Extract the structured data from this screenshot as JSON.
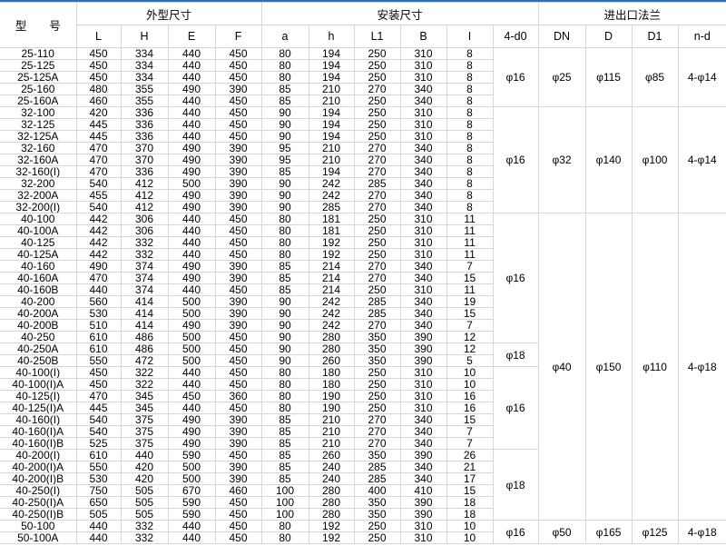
{
  "header": {
    "model": "型　　号",
    "group_outline": "外型尺寸",
    "group_install": "安装尺寸",
    "group_flange": "进出口法兰",
    "columns": [
      "L",
      "H",
      "E",
      "F",
      "a",
      "h",
      "L1",
      "B",
      "I",
      "4-d0",
      "DN",
      "D",
      "D1",
      "n-d"
    ]
  },
  "colors": {
    "top_bar": "#2f6eaf",
    "border": "#d6d6d6",
    "text": "#000000"
  },
  "rows": [
    [
      "25-110",
      "450",
      "334",
      "440",
      "450",
      "80",
      "194",
      "250",
      "310",
      "8"
    ],
    [
      "25-125",
      "450",
      "334",
      "440",
      "450",
      "80",
      "194",
      "250",
      "310",
      "8"
    ],
    [
      "25-125A",
      "450",
      "334",
      "440",
      "450",
      "80",
      "194",
      "250",
      "310",
      "8"
    ],
    [
      "25-160",
      "480",
      "355",
      "490",
      "390",
      "85",
      "210",
      "270",
      "340",
      "8"
    ],
    [
      "25-160A",
      "460",
      "355",
      "440",
      "450",
      "85",
      "210",
      "250",
      "340",
      "8"
    ],
    [
      "32-100",
      "420",
      "336",
      "440",
      "450",
      "90",
      "194",
      "250",
      "310",
      "8"
    ],
    [
      "32-125",
      "445",
      "336",
      "440",
      "450",
      "90",
      "194",
      "250",
      "310",
      "8"
    ],
    [
      "32-125A",
      "445",
      "336",
      "440",
      "450",
      "90",
      "194",
      "250",
      "310",
      "8"
    ],
    [
      "32-160",
      "470",
      "370",
      "490",
      "390",
      "95",
      "210",
      "270",
      "340",
      "8"
    ],
    [
      "32-160A",
      "470",
      "370",
      "490",
      "390",
      "95",
      "210",
      "270",
      "340",
      "8"
    ],
    [
      "32-160(I)",
      "470",
      "336",
      "490",
      "390",
      "85",
      "194",
      "270",
      "340",
      "8"
    ],
    [
      "32-200",
      "540",
      "412",
      "500",
      "390",
      "90",
      "242",
      "285",
      "340",
      "8"
    ],
    [
      "32-200A",
      "455",
      "412",
      "490",
      "390",
      "90",
      "242",
      "270",
      "340",
      "8"
    ],
    [
      "32-200(I)",
      "540",
      "412",
      "490",
      "390",
      "90",
      "285",
      "270",
      "340",
      "8"
    ],
    [
      "40-100",
      "442",
      "306",
      "440",
      "450",
      "80",
      "181",
      "250",
      "310",
      "11"
    ],
    [
      "40-100A",
      "442",
      "306",
      "440",
      "450",
      "80",
      "181",
      "250",
      "310",
      "11"
    ],
    [
      "40-125",
      "442",
      "332",
      "440",
      "450",
      "80",
      "192",
      "250",
      "310",
      "11"
    ],
    [
      "40-125A",
      "442",
      "332",
      "440",
      "450",
      "80",
      "192",
      "250",
      "310",
      "11"
    ],
    [
      "40-160",
      "490",
      "374",
      "490",
      "390",
      "85",
      "214",
      "270",
      "340",
      "7"
    ],
    [
      "40-160A",
      "470",
      "374",
      "490",
      "390",
      "85",
      "214",
      "270",
      "340",
      "15"
    ],
    [
      "40-160B",
      "440",
      "374",
      "440",
      "450",
      "85",
      "214",
      "250",
      "310",
      "11"
    ],
    [
      "40-200",
      "560",
      "414",
      "500",
      "390",
      "90",
      "242",
      "285",
      "340",
      "19"
    ],
    [
      "40-200A",
      "530",
      "414",
      "500",
      "390",
      "90",
      "242",
      "285",
      "340",
      "15"
    ],
    [
      "40-200B",
      "510",
      "414",
      "490",
      "390",
      "90",
      "242",
      "270",
      "340",
      "7"
    ],
    [
      "40-250",
      "610",
      "486",
      "500",
      "450",
      "90",
      "280",
      "350",
      "390",
      "12"
    ],
    [
      "40-250A",
      "610",
      "486",
      "500",
      "450",
      "90",
      "280",
      "350",
      "390",
      "12"
    ],
    [
      "40-250B",
      "550",
      "472",
      "500",
      "450",
      "90",
      "260",
      "350",
      "390",
      "5"
    ],
    [
      "40-100(I)",
      "450",
      "322",
      "440",
      "450",
      "80",
      "180",
      "250",
      "310",
      "10"
    ],
    [
      "40-100(I)A",
      "450",
      "322",
      "440",
      "450",
      "80",
      "180",
      "250",
      "310",
      "10"
    ],
    [
      "40-125(I)",
      "470",
      "345",
      "450",
      "360",
      "80",
      "190",
      "250",
      "310",
      "16"
    ],
    [
      "40-125(I)A",
      "445",
      "345",
      "440",
      "450",
      "80",
      "190",
      "250",
      "310",
      "16"
    ],
    [
      "40-160(I)",
      "540",
      "375",
      "490",
      "390",
      "85",
      "210",
      "270",
      "340",
      "15"
    ],
    [
      "40-160(I)A",
      "540",
      "375",
      "490",
      "390",
      "85",
      "210",
      "270",
      "340",
      "7"
    ],
    [
      "40-160(I)B",
      "525",
      "375",
      "490",
      "390",
      "85",
      "210",
      "270",
      "340",
      "7"
    ],
    [
      "40-200(I)",
      "610",
      "440",
      "590",
      "450",
      "85",
      "260",
      "350",
      "390",
      "26"
    ],
    [
      "40-200(I)A",
      "550",
      "420",
      "500",
      "390",
      "85",
      "240",
      "285",
      "340",
      "21"
    ],
    [
      "40-200(I)B",
      "530",
      "420",
      "500",
      "390",
      "85",
      "240",
      "285",
      "340",
      "17"
    ],
    [
      "40-250(I)",
      "750",
      "505",
      "670",
      "460",
      "100",
      "280",
      "400",
      "410",
      "15"
    ],
    [
      "40-250(I)A",
      "650",
      "505",
      "590",
      "450",
      "100",
      "280",
      "350",
      "390",
      "18"
    ],
    [
      "40-250(I)B",
      "505",
      "505",
      "590",
      "450",
      "100",
      "280",
      "350",
      "390",
      "18"
    ],
    [
      "50-100",
      "440",
      "332",
      "440",
      "450",
      "80",
      "192",
      "250",
      "310",
      "10"
    ],
    [
      "50-100A",
      "440",
      "332",
      "440",
      "450",
      "80",
      "192",
      "250",
      "310",
      "10"
    ]
  ],
  "bolt_holes_groups": [
    {
      "rows": 5,
      "value": "φ16"
    },
    {
      "rows": 9,
      "value": "φ16"
    },
    {
      "rows": 11,
      "value": "φ16"
    },
    {
      "rows": 2,
      "value": "φ18"
    },
    {
      "rows": 7,
      "value": "φ16"
    },
    {
      "rows": 6,
      "value": "φ18"
    },
    {
      "rows": 2,
      "value": "φ16"
    }
  ],
  "flange_groups": [
    {
      "rows": 5,
      "DN": "φ25",
      "D": "φ115",
      "D1": "φ85",
      "nd": "4-φ14"
    },
    {
      "rows": 9,
      "DN": "φ32",
      "D": "φ140",
      "D1": "φ100",
      "nd": "4-φ14"
    },
    {
      "rows": 26,
      "DN": "φ40",
      "D": "φ150",
      "D1": "φ110",
      "nd": "4-φ18"
    },
    {
      "rows": 2,
      "DN": "φ50",
      "D": "φ165",
      "D1": "φ125",
      "nd": "4-φ18"
    }
  ]
}
